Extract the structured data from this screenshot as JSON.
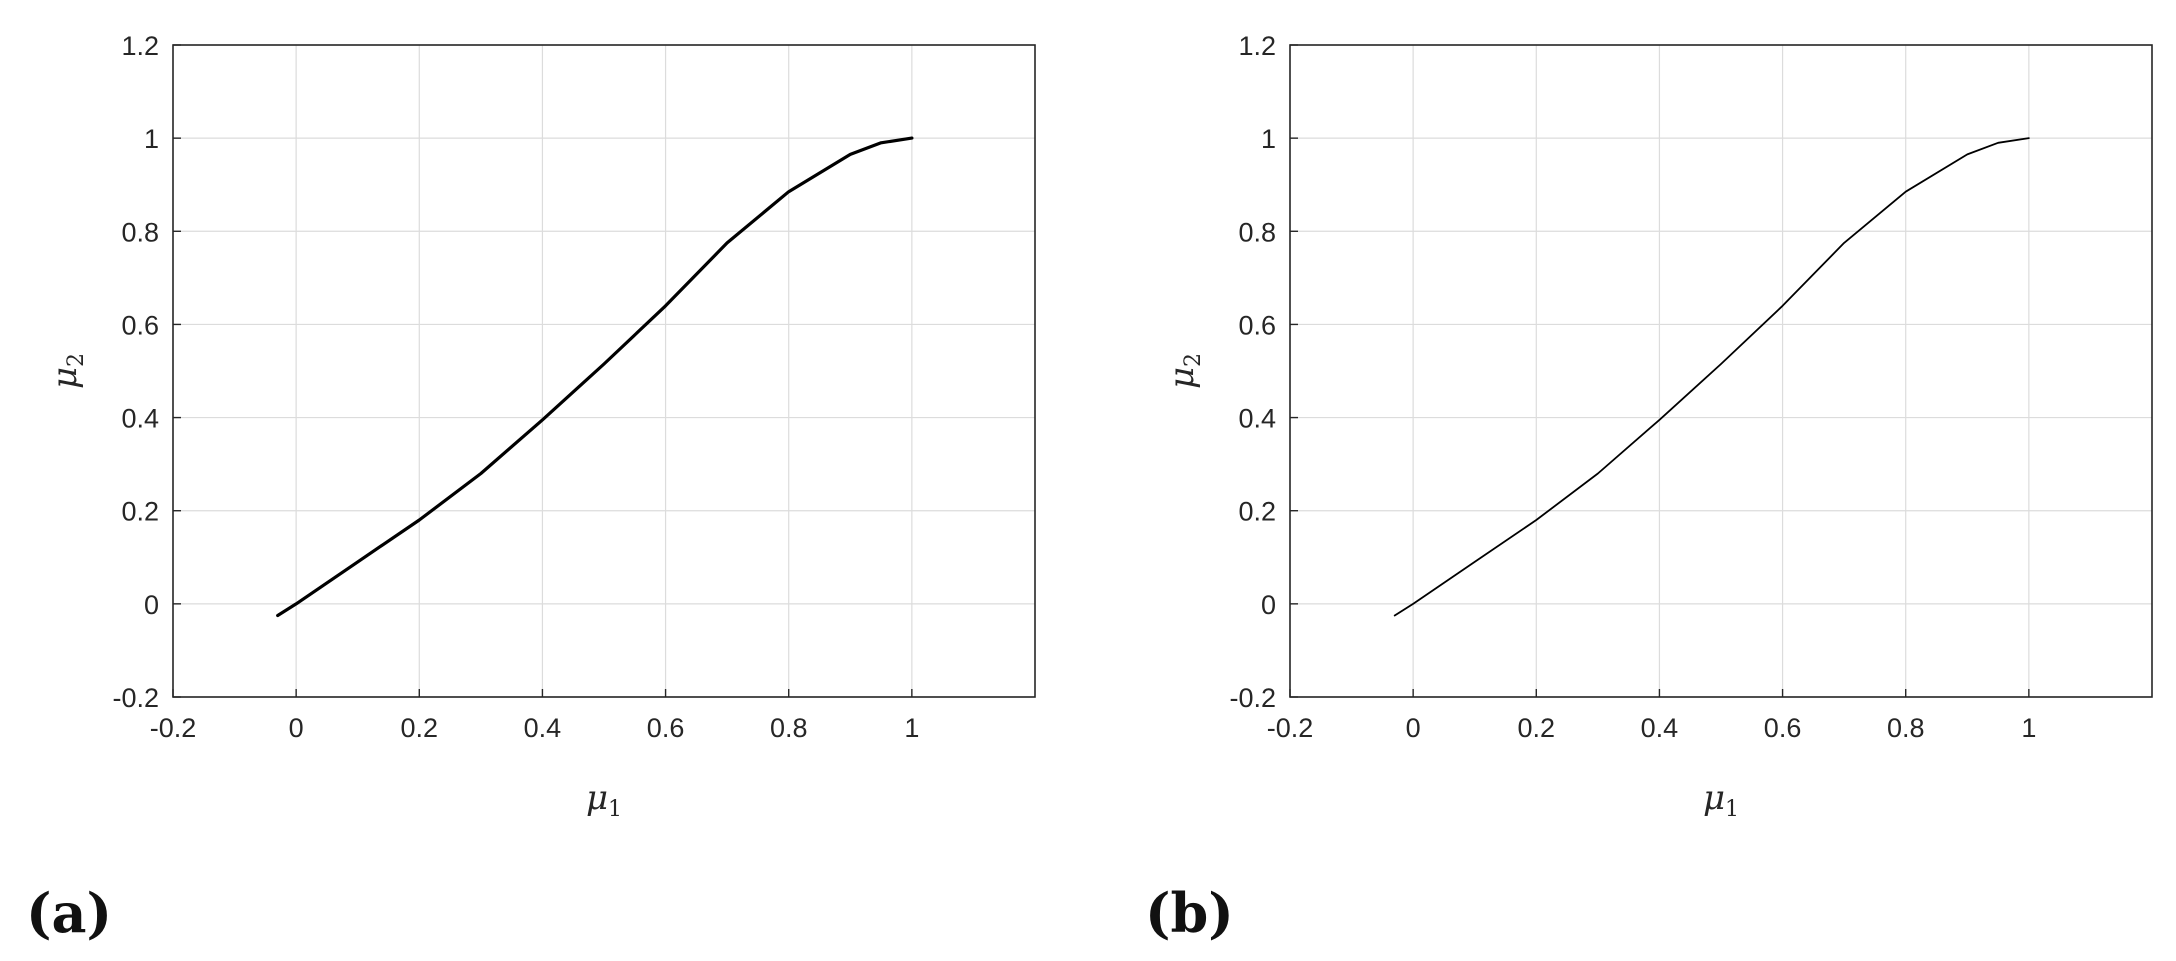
{
  "chart_data": [
    {
      "type": "line",
      "panel": "(a)",
      "xlabel": "μ1",
      "ylabel": "μ2",
      "xlim": [
        -0.2,
        1.2
      ],
      "ylim": [
        -0.2,
        1.2
      ],
      "xticks": [
        "-0.2",
        "0",
        "0.2",
        "0.4",
        "0.6",
        "0.8",
        "1"
      ],
      "yticks": [
        "-0.2",
        "0",
        "0.2",
        "0.4",
        "0.6",
        "0.8",
        "1",
        "1.2"
      ],
      "grid": true,
      "series": [
        {
          "x": [
            -0.03,
            0.0,
            0.1,
            0.2,
            0.3,
            0.4,
            0.5,
            0.6,
            0.7,
            0.8,
            0.9,
            0.95,
            1.0
          ],
          "y": [
            -0.025,
            0.0,
            0.09,
            0.18,
            0.28,
            0.395,
            0.515,
            0.64,
            0.775,
            0.885,
            0.965,
            0.99,
            1.0
          ]
        }
      ]
    },
    {
      "type": "line",
      "panel": "(b)",
      "xlabel": "μ1",
      "ylabel": "μ2",
      "xlim": [
        -0.2,
        1.2
      ],
      "ylim": [
        -0.2,
        1.2
      ],
      "xticks": [
        "-0.2",
        "0",
        "0.2",
        "0.4",
        "0.6",
        "0.8",
        "1"
      ],
      "yticks": [
        "-0.2",
        "0",
        "0.2",
        "0.4",
        "0.6",
        "0.8",
        "1",
        "1.2"
      ],
      "grid": true,
      "series": [
        {
          "x": [
            -0.03,
            0.0,
            0.1,
            0.2,
            0.3,
            0.4,
            0.5,
            0.6,
            0.7,
            0.8,
            0.9,
            0.95,
            1.0
          ],
          "y": [
            -0.025,
            0.0,
            0.09,
            0.18,
            0.28,
            0.395,
            0.515,
            0.64,
            0.775,
            0.885,
            0.965,
            0.99,
            1.0
          ]
        }
      ]
    }
  ],
  "panels": {
    "a_label": "(a)",
    "b_label": "(b)"
  },
  "labels": {
    "mu": "μ",
    "x_sub": "1",
    "y_sub": "2"
  }
}
